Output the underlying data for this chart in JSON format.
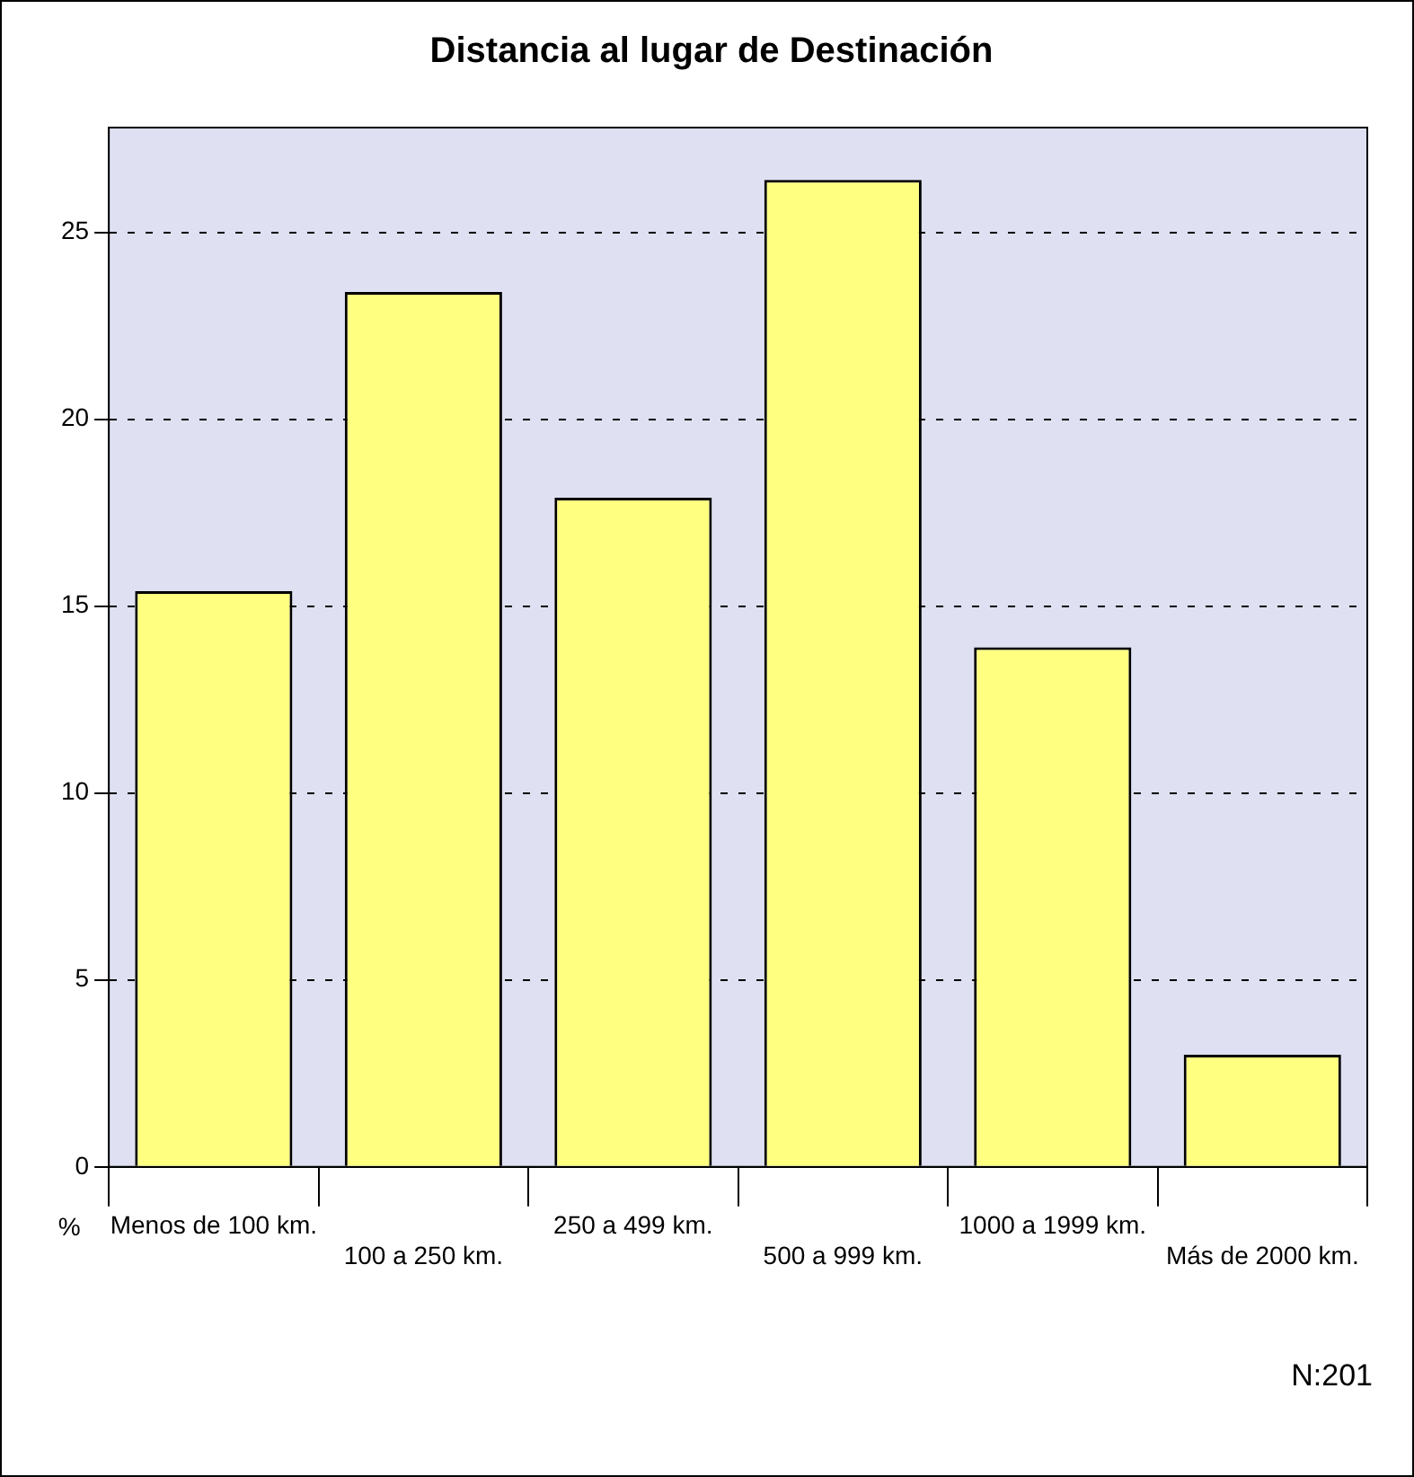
{
  "chart_data": {
    "type": "bar",
    "title": "Distancia al lugar de Destinación",
    "ylabel": "%",
    "categories": [
      "Menos de 100 km.",
      "100 a 250 km.",
      "250 a 499 km.",
      "500 a 999 km.",
      "1000 a 1999 km.",
      "Más de 2000 km."
    ],
    "values": [
      15.4,
      23.4,
      17.9,
      26.4,
      13.9,
      3.0
    ],
    "color": "#ffff80",
    "ylim": [
      0,
      27.8
    ],
    "yticks": [
      0,
      5,
      10,
      15,
      20,
      25
    ],
    "grid": "y",
    "annotations": [
      "N:201"
    ]
  }
}
